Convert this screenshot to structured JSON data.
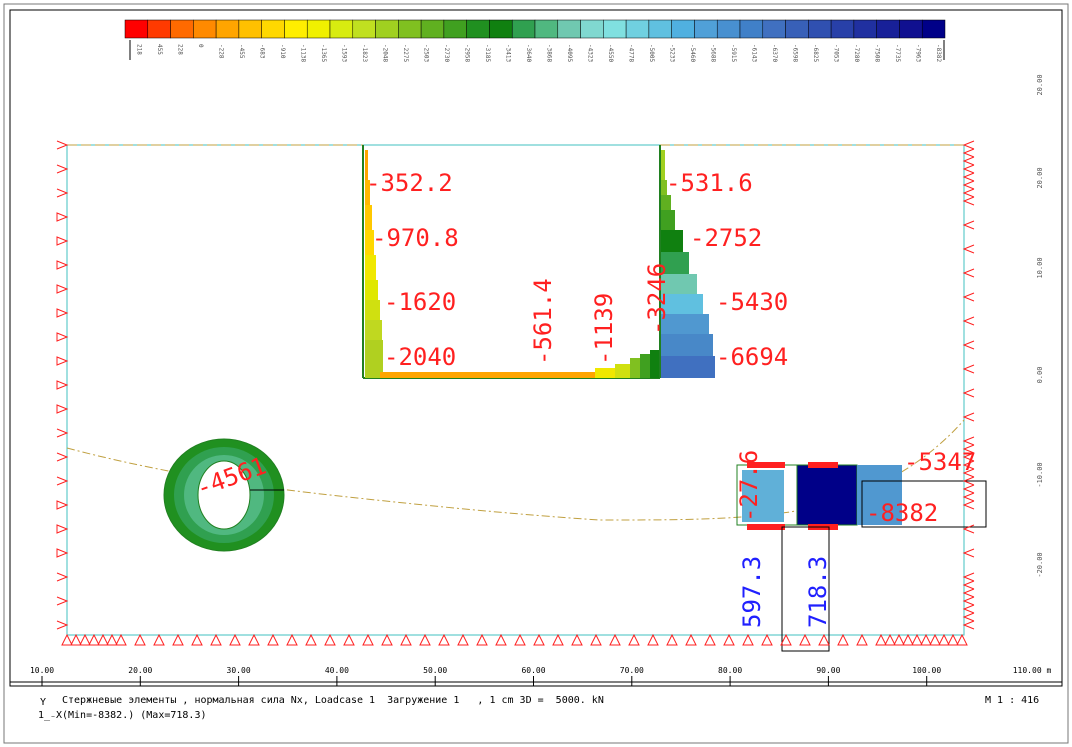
{
  "colors": {
    "frame": "#000000",
    "support": "#ff2020",
    "boundary": "#40c0c0",
    "beam_green": "#208020",
    "tan_line": "#c0a040",
    "label_red": "#ff2020",
    "label_blue": "#2020ff",
    "legend": [
      "#ff0000",
      "#ff3a00",
      "#ff6a00",
      "#ff8a00",
      "#ffa500",
      "#ffc000",
      "#ffd800",
      "#ffee00",
      "#f0f000",
      "#d8ec10",
      "#c0e020",
      "#a0d020",
      "#80c020",
      "#60b020",
      "#40a020",
      "#209020",
      "#108010",
      "#30a050",
      "#50b880",
      "#70c8b0",
      "#80d8d0",
      "#80e0e0",
      "#70d0e0",
      "#60c0e0",
      "#50b0e0",
      "#50a0d8",
      "#4890d0",
      "#4080c8",
      "#4070c0",
      "#3860b8",
      "#3050b0",
      "#2840a8",
      "#2030a0",
      "#182098",
      "#101090",
      "#000088"
    ]
  },
  "legend_ticks": [
    "218",
    "455",
    "228",
    "0",
    "-228",
    "-455",
    "-683",
    "-910",
    "-1138",
    "-1365",
    "-1593",
    "-1823",
    "-2048",
    "-2275",
    "-2503",
    "-2730",
    "-2958",
    "-3185",
    "-3413",
    "-3640",
    "-3868",
    "-4095",
    "-4323",
    "-4550",
    "-4778",
    "-5005",
    "-5233",
    "-5460",
    "-5688",
    "-5915",
    "-6143",
    "-6370",
    "-6598",
    "-6825",
    "-7053",
    "-7280",
    "-7508",
    "-7735",
    "-7963",
    "-8382"
  ],
  "x_axis_ticks": [
    "10.00",
    "20.00",
    "30.00",
    "40.00",
    "50.00",
    "60.00",
    "70.00",
    "80.00",
    "90.00",
    "100.00"
  ],
  "x_axis_end": "110.00 m",
  "y_axis_ticks": [
    "20.00",
    "20.00",
    "10.00",
    "0.00",
    "-10.00",
    "-20.00"
  ],
  "labels_red": [
    {
      "text": "-352.2"
    },
    {
      "text": "-970.8"
    },
    {
      "text": "-1620"
    },
    {
      "text": "-2040"
    },
    {
      "text": "-561.4"
    },
    {
      "text": "-1139"
    },
    {
      "text": "-3246"
    },
    {
      "text": "-531.6"
    },
    {
      "text": "-2752"
    },
    {
      "text": "-5430"
    },
    {
      "text": "-6694"
    },
    {
      "text": "-4561"
    },
    {
      "text": "-27.6"
    },
    {
      "text": "-5347"
    },
    {
      "text": "-8382"
    }
  ],
  "labels_blue": [
    {
      "text": "597.3"
    },
    {
      "text": "718.3"
    }
  ],
  "footer": {
    "axis_y": "Y",
    "axis_x": "1̲₋X",
    "line1": "Стержневые элементы , нормальная сила Nx, Loadcase 1  Загружение 1   , 1 cm 3D =  5000. kN",
    "line2": "(Min=-8382.) (Max=718.3)",
    "scale": "M 1 : 416"
  }
}
